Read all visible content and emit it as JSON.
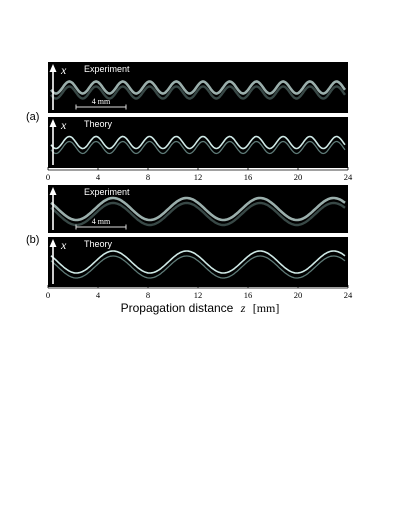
{
  "figure": {
    "panels": [
      {
        "label": "(a)",
        "rows": [
          {
            "axis_var": "x",
            "title": "Experiment",
            "scale_bar": "4 mm",
            "kind": "experiment",
            "periods": 11
          },
          {
            "axis_var": "x",
            "title": "Theory",
            "scale_bar": "",
            "kind": "theory",
            "periods": 11
          }
        ],
        "ticks": [
          "0",
          "4",
          "8",
          "12",
          "16",
          "20",
          "24"
        ]
      },
      {
        "label": "(b)",
        "rows": [
          {
            "axis_var": "",
            "title": "Experiment",
            "scale_bar": "4 mm",
            "kind": "experiment",
            "periods": 4
          },
          {
            "axis_var": "x",
            "title": "Theory",
            "scale_bar": "",
            "kind": "theory",
            "periods": 4
          }
        ],
        "ticks": [
          "0",
          "4",
          "8",
          "12",
          "16",
          "20",
          "24"
        ]
      }
    ],
    "xaxis": {
      "label": "Propagation distance",
      "variable": "z",
      "unit": "[mm]",
      "range": [
        0,
        24
      ]
    },
    "colors": {
      "background": "#000000",
      "beam": "#cfe9e6",
      "beam_dim": "#6f8f8c",
      "text": "#ffffff"
    }
  }
}
